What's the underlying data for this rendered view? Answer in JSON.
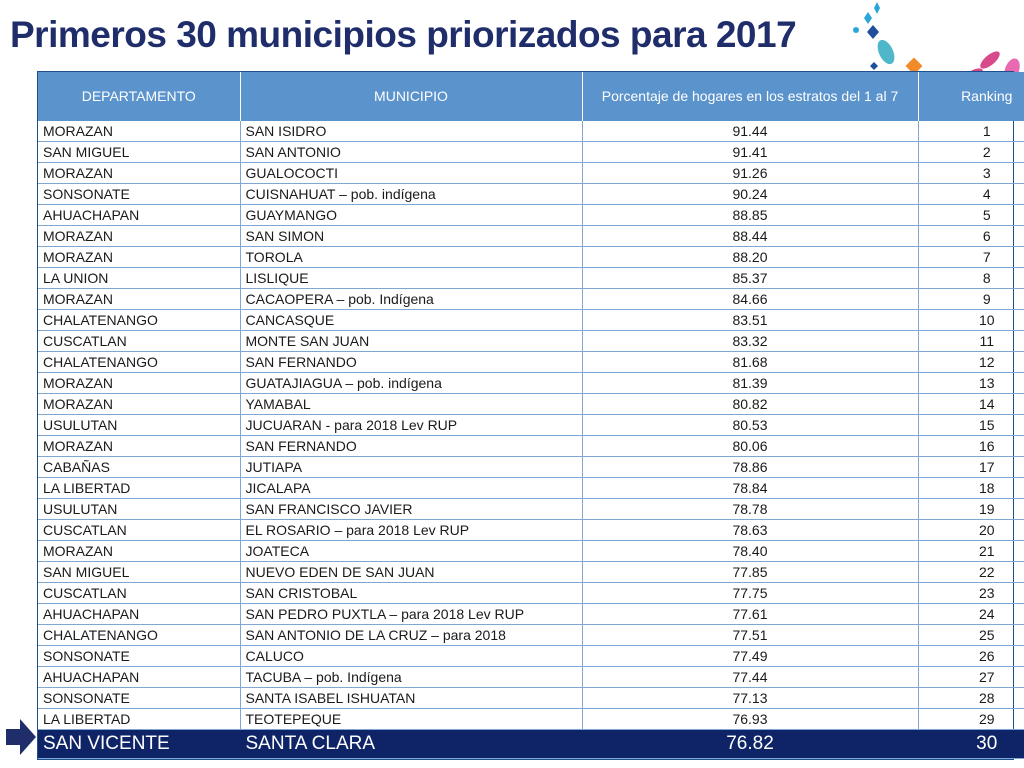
{
  "title": "Primeros 30 municipios priorizados para 2017",
  "headers": {
    "departamento": "DEPARTAMENTO",
    "municipio": "MUNICIPIO",
    "porcentaje": "Porcentaje de hogares en los estratos del 1 al 7",
    "ranking": "Ranking"
  },
  "rows": [
    {
      "departamento": "MORAZAN",
      "municipio": "SAN ISIDRO",
      "porcentaje": "91.44",
      "ranking": "1"
    },
    {
      "departamento": "SAN MIGUEL",
      "municipio": "SAN ANTONIO",
      "porcentaje": "91.41",
      "ranking": "2"
    },
    {
      "departamento": "MORAZAN",
      "municipio": "GUALOCOCTI",
      "porcentaje": "91.26",
      "ranking": "3"
    },
    {
      "departamento": "SONSONATE",
      "municipio": "CUISNAHUAT – pob. indígena",
      "porcentaje": "90.24",
      "ranking": "4"
    },
    {
      "departamento": "AHUACHAPAN",
      "municipio": "GUAYMANGO",
      "porcentaje": "88.85",
      "ranking": "5"
    },
    {
      "departamento": "MORAZAN",
      "municipio": "SAN SIMON",
      "porcentaje": "88.44",
      "ranking": "6"
    },
    {
      "departamento": "MORAZAN",
      "municipio": "TOROLA",
      "porcentaje": "88.20",
      "ranking": "7"
    },
    {
      "departamento": "LA UNION",
      "municipio": "LISLIQUE",
      "porcentaje": "85.37",
      "ranking": "8"
    },
    {
      "departamento": "MORAZAN",
      "municipio": "CACAOPERA – pob. Indígena",
      "porcentaje": "84.66",
      "ranking": "9"
    },
    {
      "departamento": "CHALATENANGO",
      "municipio": "CANCASQUE",
      "porcentaje": "83.51",
      "ranking": "10"
    },
    {
      "departamento": "CUSCATLAN",
      "municipio": "MONTE SAN JUAN",
      "porcentaje": "83.32",
      "ranking": "11"
    },
    {
      "departamento": "CHALATENANGO",
      "municipio": "SAN FERNANDO",
      "porcentaje": "81.68",
      "ranking": "12"
    },
    {
      "departamento": "MORAZAN",
      "municipio": "GUATAJIAGUA – pob. indígena",
      "porcentaje": "81.39",
      "ranking": "13"
    },
    {
      "departamento": "MORAZAN",
      "municipio": "YAMABAL",
      "porcentaje": "80.82",
      "ranking": "14"
    },
    {
      "departamento": "USULUTAN",
      "municipio": "JUCUARAN  - para 2018 Lev RUP",
      "porcentaje": "80.53",
      "ranking": "15"
    },
    {
      "departamento": "MORAZAN",
      "municipio": "SAN FERNANDO",
      "porcentaje": "80.06",
      "ranking": "16"
    },
    {
      "departamento": "CABAÑAS",
      "municipio": "JUTIAPA",
      "porcentaje": "78.86",
      "ranking": "17"
    },
    {
      "departamento": "LA LIBERTAD",
      "municipio": "JICALAPA",
      "porcentaje": "78.84",
      "ranking": "18"
    },
    {
      "departamento": "USULUTAN",
      "municipio": "SAN FRANCISCO JAVIER",
      "porcentaje": "78.78",
      "ranking": "19"
    },
    {
      "departamento": "CUSCATLAN",
      "municipio": "EL ROSARIO – para 2018 Lev RUP",
      "porcentaje": "78.63",
      "ranking": "20"
    },
    {
      "departamento": "MORAZAN",
      "municipio": "JOATECA",
      "porcentaje": "78.40",
      "ranking": "21"
    },
    {
      "departamento": "SAN MIGUEL",
      "municipio": "NUEVO EDEN DE SAN JUAN",
      "porcentaje": "77.85",
      "ranking": "22"
    },
    {
      "departamento": "CUSCATLAN",
      "municipio": "SAN CRISTOBAL",
      "porcentaje": "77.75",
      "ranking": "23"
    },
    {
      "departamento": "AHUACHAPAN",
      "municipio": "SAN PEDRO PUXTLA – para 2018 Lev RUP",
      "porcentaje": "77.61",
      "ranking": "24"
    },
    {
      "departamento": "CHALATENANGO",
      "municipio": "SAN ANTONIO DE LA CRUZ – para 2018",
      "porcentaje": "77.51",
      "ranking": "25"
    },
    {
      "departamento": "SONSONATE",
      "municipio": "CALUCO",
      "porcentaje": "77.49",
      "ranking": "26"
    },
    {
      "departamento": "AHUACHAPAN",
      "municipio": "TACUBA – pob. Indígena",
      "porcentaje": "77.44",
      "ranking": "27"
    },
    {
      "departamento": "SONSONATE",
      "municipio": "SANTA ISABEL ISHUATAN",
      "porcentaje": "77.13",
      "ranking": "28"
    },
    {
      "departamento": "LA LIBERTAD",
      "municipio": "TEOTEPEQUE",
      "porcentaje": "76.93",
      "ranking": "29"
    }
  ],
  "highlight_row": {
    "departamento": "SAN VICENTE",
    "municipio": "SANTA CLARA",
    "porcentaje": "76.82",
    "ranking": "30"
  },
  "colors": {
    "title": "#1f2d6b",
    "header_bg": "#5b93cc",
    "highlight_bg": "#0f2466",
    "arrow": "#1f2d6b"
  },
  "icons": {
    "decoration": "colorful-shapes-decoration-icon",
    "pointer": "right-arrow-icon"
  }
}
